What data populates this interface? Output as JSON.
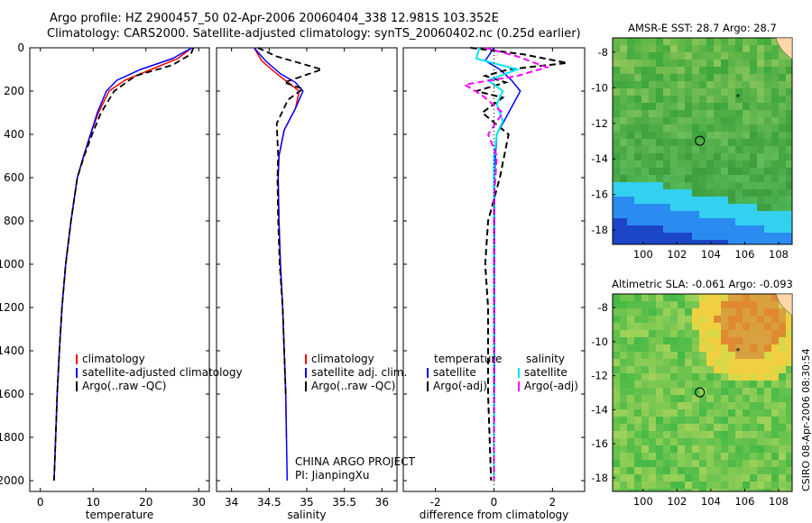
{
  "title_line1": "Argo profile: HZ 2900457_50 02-Apr-2006 20060404_338 12.981S 103.352E",
  "title_line2": "Climatology: CARS2000. Satellite-adjusted climatology: synTS_20060402.nc (0.25d earlier)",
  "side_label": "CSIRO 08-Apr-2006 08:30:54",
  "colors": {
    "climatology": "#ff0000",
    "satellite": "#0000ff",
    "argo": "#000000",
    "salinity_satellite": "#00e5ff",
    "salinity_argo": "#ff00ff"
  },
  "chart_data": [
    {
      "type": "line",
      "xlabel": "temperature",
      "xlim": [
        -2,
        32
      ],
      "ylim": [
        2050,
        0
      ],
      "xticks": [
        "0",
        "10",
        "20",
        "30"
      ],
      "yticks": [
        "0",
        "200",
        "400",
        "600",
        "800",
        "1000",
        "1200",
        "1400",
        "1600",
        "1800",
        "2000"
      ],
      "legend": [
        "climatology",
        "satellite-adjusted climatology",
        "Argo(..raw -QC)"
      ],
      "series": [
        {
          "name": "climatology",
          "x": [
            28.7,
            26,
            21,
            16,
            13,
            11,
            9.5,
            8.2,
            7,
            5.8,
            4.8,
            4.1,
            3.6,
            3.2,
            2.9,
            2.6
          ],
          "y": [
            0,
            50,
            100,
            150,
            200,
            300,
            400,
            500,
            600,
            800,
            1000,
            1200,
            1400,
            1600,
            1800,
            2000
          ]
        },
        {
          "name": "satellite-adjusted climatology",
          "x": [
            28.7,
            25,
            19,
            14.5,
            12.5,
            10.8,
            9.5,
            8.2,
            7,
            5.8,
            4.8,
            4.1,
            3.6,
            3.2,
            2.9,
            2.6
          ],
          "y": [
            0,
            50,
            100,
            150,
            200,
            300,
            400,
            500,
            600,
            800,
            1000,
            1200,
            1400,
            1600,
            1800,
            2000
          ]
        },
        {
          "name": "Argo(..raw -QC)",
          "x": [
            29,
            28.5,
            25,
            18,
            14,
            11.5,
            9.8,
            8.3,
            7,
            5.8,
            4.8,
            4.1,
            3.6,
            3.2,
            2.9,
            2.6
          ],
          "y": [
            0,
            30,
            80,
            130,
            200,
            300,
            400,
            500,
            600,
            800,
            1000,
            1200,
            1400,
            1600,
            1800,
            2000
          ]
        }
      ]
    },
    {
      "type": "line",
      "xlabel": "salinity",
      "xlim": [
        33.8,
        36.2
      ],
      "ylim": [
        2050,
        0
      ],
      "xticks": [
        "34",
        "34.5",
        "35",
        "35.5",
        "36"
      ],
      "legend": [
        "climatology",
        "satellite adj. clim.",
        "Argo(..raw -QC)"
      ],
      "annotations": [
        "CHINA ARGO PROJECT",
        "PI: JianpingXu"
      ],
      "series": [
        {
          "name": "climatology",
          "x": [
            34.3,
            34.4,
            34.6,
            34.75,
            34.9,
            34.85,
            34.7,
            34.63,
            34.62,
            34.63,
            34.65,
            34.68,
            34.7,
            34.72,
            34.73
          ],
          "y": [
            0,
            60,
            120,
            160,
            200,
            280,
            380,
            500,
            600,
            800,
            1000,
            1200,
            1400,
            1600,
            1800
          ]
        },
        {
          "name": "satellite adj. clim.",
          "x": [
            34.3,
            34.45,
            34.65,
            34.85,
            34.95,
            34.85,
            34.7,
            34.63,
            34.62,
            34.63,
            34.65,
            34.68,
            34.7,
            34.72,
            34.73,
            34.74
          ],
          "y": [
            0,
            60,
            120,
            160,
            200,
            280,
            380,
            500,
            600,
            800,
            1000,
            1200,
            1400,
            1600,
            1800,
            2000
          ]
        },
        {
          "name": "Argo(..raw -QC)",
          "x": [
            34.35,
            34.6,
            35.2,
            34.7,
            34.95,
            34.75,
            34.6,
            34.62,
            34.61,
            34.62,
            34.64,
            34.68,
            34.7,
            34.72
          ],
          "y": [
            0,
            40,
            100,
            160,
            190,
            240,
            350,
            500,
            600,
            800,
            1000,
            1200,
            1400,
            1600
          ]
        }
      ]
    },
    {
      "type": "line",
      "xlabel": "difference from climatology",
      "xlim": [
        -3.1,
        3.1
      ],
      "ylim": [
        2050,
        0
      ],
      "xticks": [
        "-2",
        "0",
        "2"
      ],
      "legend_left": [
        "temperature",
        "satellite",
        "Argo(-adj)"
      ],
      "legend_right": [
        "salinity",
        "satellite",
        "Argo(-adj)"
      ],
      "series": [
        {
          "name": "temperature satellite",
          "x": [
            0,
            -0.3,
            0.2,
            0.6,
            0.9,
            0.5,
            0.1,
            0.05,
            0.02,
            0.02,
            0.02,
            0.02,
            0
          ],
          "y": [
            0,
            60,
            100,
            150,
            200,
            300,
            400,
            500,
            600,
            800,
            1000,
            1500,
            2000
          ]
        },
        {
          "name": "temperature Argo(-adj)",
          "x": [
            -0.8,
            1.0,
            2.5,
            0.5,
            -0.3,
            0.4,
            -0.6,
            0.3,
            -0.4,
            0.5,
            0.2,
            -0.2,
            -0.3,
            -0.2,
            -0.2,
            -0.1
          ],
          "y": [
            0,
            30,
            70,
            100,
            130,
            160,
            200,
            230,
            300,
            400,
            600,
            800,
            1000,
            1200,
            1600,
            2000
          ]
        },
        {
          "name": "salinity satellite",
          "x": [
            -0.5,
            -0.6,
            0.8,
            -0.2,
            0.3,
            0.1,
            0.3,
            0.1,
            0,
            0,
            0,
            0
          ],
          "y": [
            0,
            50,
            100,
            150,
            200,
            260,
            340,
            400,
            500,
            800,
            1400,
            2000
          ]
        },
        {
          "name": "salinity Argo(-adj)",
          "x": [
            -0.3,
            0.8,
            1.8,
            0.8,
            -1.0,
            -0.4,
            0.3,
            -0.2,
            0.1,
            0,
            0,
            0,
            0
          ],
          "y": [
            0,
            40,
            90,
            130,
            170,
            220,
            300,
            400,
            500,
            700,
            1000,
            1500,
            2000
          ]
        }
      ]
    }
  ],
  "maps": [
    {
      "title": "AMSR-E SST: 28.7  Argo: 28.7",
      "xticks": [
        "100",
        "102",
        "104",
        "106",
        "108"
      ],
      "yticks": [
        "-8",
        "-10",
        "-12",
        "-14",
        "-16",
        "-18"
      ]
    },
    {
      "title": "Altimetric SLA: -0.061  Argo: -0.093",
      "xticks": [
        "100",
        "102",
        "104",
        "106",
        "108"
      ],
      "yticks": [
        "-8",
        "-10",
        "-12",
        "-14",
        "-16",
        "-18"
      ]
    }
  ]
}
